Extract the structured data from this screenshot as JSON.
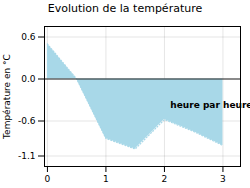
{
  "chart_data": {
    "type": "area",
    "title": "Evolution de la température",
    "ylabel": "Température en °C",
    "x": [
      0,
      0.5,
      1.0,
      1.5,
      2.0,
      2.5,
      3.0
    ],
    "values": [
      0.5,
      0.0,
      -0.85,
      -1.0,
      -0.58,
      -0.75,
      -0.95
    ],
    "color": "#a8d8e8",
    "line_style": "dotted",
    "xlim": [
      -0.05,
      3.3
    ],
    "ylim": [
      -1.25,
      0.75
    ],
    "xticks": [
      0,
      1,
      2,
      3
    ],
    "yticks": [
      -1.1,
      -0.6,
      {
        "value": 0.0,
        "label": "0.0"
      },
      0.6
    ],
    "grid": true,
    "annotations": [
      {
        "text": "heure par heure",
        "x": 2.1,
        "y": -0.38
      }
    ]
  }
}
